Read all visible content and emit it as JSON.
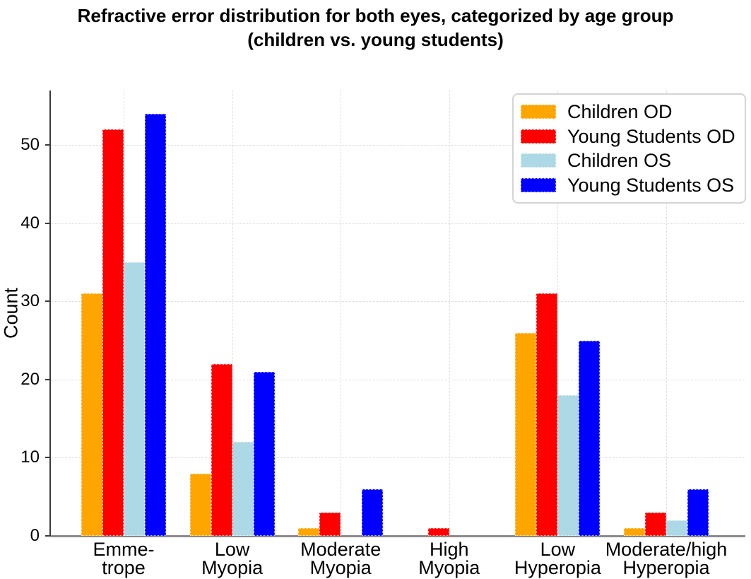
{
  "chart_data": {
    "type": "bar",
    "title": "Refractive error distribution for both eyes, categorized by age group\n(children vs. young students)",
    "xlabel": "",
    "ylabel": "Count",
    "categories": [
      "Emme-\ntrope",
      "Low\nMyopia",
      "Moderate\nMyopia",
      "High\nMyopia",
      "Low\nHyperopia",
      "Moderate/high\nHyperopia"
    ],
    "series": [
      {
        "name": "Children OD",
        "color": "#FFA500",
        "values": [
          31,
          8,
          1,
          0,
          26,
          1
        ]
      },
      {
        "name": "Young Students OD",
        "color": "#FF0000",
        "values": [
          52,
          22,
          3,
          1,
          31,
          3
        ]
      },
      {
        "name": "Children OS",
        "color": "#ADD8E6",
        "values": [
          35,
          12,
          0,
          0,
          18,
          2
        ]
      },
      {
        "name": "Young Students OS",
        "color": "#0000FF",
        "values": [
          54,
          21,
          6,
          0,
          25,
          6
        ]
      }
    ],
    "ylim": [
      0,
      57
    ],
    "yticks": [
      0,
      10,
      20,
      30,
      40,
      50
    ],
    "grid": "dotted, horizontal at y-ticks and vertical at category centers",
    "legend_position": "upper right",
    "axis_colors": {
      "left_spine": "#3b3b3b",
      "bottom_spine": "#8a8a8a",
      "grid": "#d9d9d9"
    }
  }
}
